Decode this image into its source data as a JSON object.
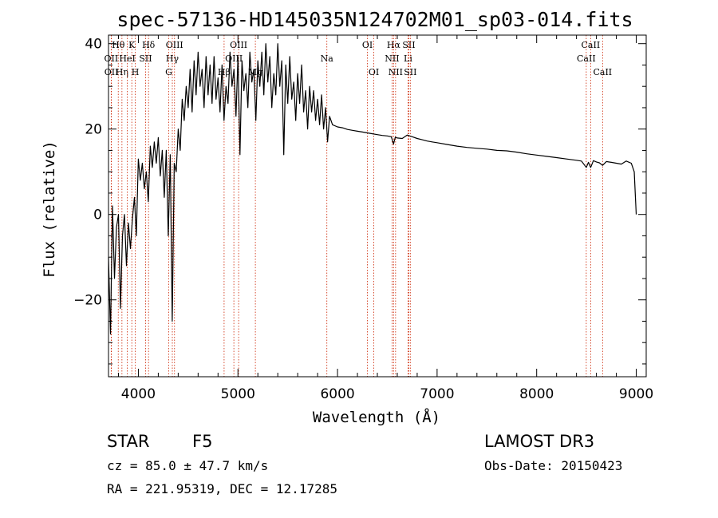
{
  "chart_data": {
    "type": "line",
    "title": "spec-57136-HD145035N124702M01_sp03-014.fits",
    "xlabel": "Wavelength (Å)",
    "ylabel": "Flux (relative)",
    "xlim": [
      3700,
      9100
    ],
    "ylim": [
      -38,
      42
    ],
    "xticks": [
      4000,
      5000,
      6000,
      7000,
      8000,
      9000
    ],
    "yticks": [
      -20,
      0,
      20,
      40
    ],
    "series": [
      {
        "name": "spectrum",
        "x": [
          3700,
          3720,
          3740,
          3760,
          3780,
          3800,
          3820,
          3840,
          3860,
          3880,
          3900,
          3920,
          3940,
          3960,
          3980,
          4000,
          4020,
          4040,
          4060,
          4080,
          4100,
          4120,
          4140,
          4160,
          4180,
          4200,
          4220,
          4240,
          4260,
          4280,
          4300,
          4320,
          4340,
          4360,
          4380,
          4400,
          4420,
          4440,
          4460,
          4480,
          4500,
          4520,
          4540,
          4560,
          4580,
          4600,
          4620,
          4640,
          4660,
          4680,
          4700,
          4720,
          4740,
          4760,
          4780,
          4800,
          4820,
          4840,
          4860,
          4880,
          4900,
          4920,
          4940,
          4960,
          4980,
          5000,
          5020,
          5040,
          5060,
          5080,
          5100,
          5120,
          5140,
          5160,
          5180,
          5200,
          5220,
          5240,
          5260,
          5280,
          5300,
          5320,
          5340,
          5360,
          5380,
          5400,
          5420,
          5440,
          5460,
          5480,
          5500,
          5520,
          5540,
          5560,
          5580,
          5600,
          5620,
          5640,
          5660,
          5680,
          5700,
          5720,
          5740,
          5760,
          5780,
          5800,
          5820,
          5840,
          5860,
          5880,
          5900,
          5920,
          5950,
          6000,
          6050,
          6100,
          6150,
          6200,
          6250,
          6300,
          6350,
          6400,
          6450,
          6500,
          6540,
          6563,
          6580,
          6600,
          6650,
          6700,
          6750,
          6800,
          6850,
          6900,
          6950,
          7000,
          7100,
          7200,
          7300,
          7400,
          7500,
          7600,
          7700,
          7800,
          7900,
          8000,
          8100,
          8200,
          8300,
          8400,
          8450,
          8498,
          8520,
          8542,
          8570,
          8600,
          8630,
          8662,
          8700,
          8750,
          8800,
          8850,
          8900,
          8950,
          8980,
          9000
        ],
        "y": [
          -10,
          -28,
          2,
          -15,
          -3,
          0,
          -22,
          -5,
          0,
          -12,
          -2,
          -8,
          -1,
          4,
          -5,
          13,
          8,
          12,
          6,
          10,
          3,
          16,
          11,
          17,
          12,
          18,
          9,
          15,
          4,
          15,
          -5,
          14,
          -25,
          12,
          10,
          20,
          15,
          27,
          22,
          30,
          25,
          34,
          24,
          36,
          28,
          38,
          30,
          34,
          25,
          37,
          28,
          35,
          26,
          37,
          27,
          32,
          24,
          35,
          22,
          30,
          26,
          38,
          30,
          34,
          23,
          37,
          14,
          36,
          29,
          33,
          25,
          38,
          31,
          34,
          22,
          36,
          30,
          38,
          28,
          40,
          31,
          37,
          25,
          33,
          28,
          40,
          30,
          36,
          14,
          35,
          26,
          37,
          27,
          31,
          22,
          33,
          26,
          35,
          24,
          29,
          20,
          30,
          24,
          29,
          22,
          27,
          21,
          28,
          20,
          25,
          17,
          23,
          21,
          20.5,
          20.3,
          19.9,
          19.7,
          19.5,
          19.3,
          19.1,
          18.9,
          18.7,
          18.5,
          18.4,
          18.2,
          16.5,
          18.1,
          17.9,
          17.8,
          18.6,
          18.2,
          17.8,
          17.5,
          17.2,
          17.0,
          16.8,
          16.4,
          16.0,
          15.7,
          15.5,
          15.3,
          15.0,
          14.9,
          14.6,
          14.2,
          13.9,
          13.6,
          13.3,
          13.0,
          12.7,
          12.5,
          11.0,
          12.2,
          11.0,
          12.6,
          12.3,
          12.1,
          11.5,
          12.4,
          12.2,
          12.0,
          11.8,
          12.5,
          12.0,
          10.0,
          0.0
        ]
      }
    ],
    "spectral_lines": [
      {
        "label": "Hθ",
        "wavelength": 3798,
        "row": 1
      },
      {
        "label": "OII",
        "wavelength": 3727,
        "row": 2
      },
      {
        "label": "OII",
        "wavelength": 3729,
        "row": 3
      },
      {
        "label": "Hη",
        "wavelength": 3835,
        "row": 3
      },
      {
        "label": "HeI",
        "wavelength": 3889,
        "row": 2
      },
      {
        "label": "K",
        "wavelength": 3934,
        "row": 1
      },
      {
        "label": "SII",
        "wavelength": 4072,
        "row": 2
      },
      {
        "label": "H",
        "wavelength": 3969,
        "row": 3
      },
      {
        "label": "Hδ",
        "wavelength": 4102,
        "row": 1
      },
      {
        "label": "OIII",
        "wavelength": 4363,
        "row": 1
      },
      {
        "label": "Hγ",
        "wavelength": 4341,
        "row": 2
      },
      {
        "label": "G",
        "wavelength": 4305,
        "row": 3
      },
      {
        "label": "OIII",
        "wavelength": 5007,
        "row": 1
      },
      {
        "label": "OIII",
        "wavelength": 4959,
        "row": 2
      },
      {
        "label": "Hβ",
        "wavelength": 4861,
        "row": 3
      },
      {
        "label": "Mg",
        "wavelength": 5175,
        "row": 3
      },
      {
        "label": "Na",
        "wavelength": 5893,
        "row": 2
      },
      {
        "label": "OI",
        "wavelength": 6300,
        "row": 1
      },
      {
        "label": "OI",
        "wavelength": 6364,
        "row": 3
      },
      {
        "label": "Hα",
        "wavelength": 6563,
        "row": 1
      },
      {
        "label": "SII",
        "wavelength": 6716,
        "row": 1
      },
      {
        "label": "NII",
        "wavelength": 6548,
        "row": 2
      },
      {
        "label": "Li",
        "wavelength": 6708,
        "row": 2
      },
      {
        "label": "NII",
        "wavelength": 6583,
        "row": 3
      },
      {
        "label": "SII",
        "wavelength": 6731,
        "row": 3
      },
      {
        "label": "CaII",
        "wavelength": 8542,
        "row": 1
      },
      {
        "label": "CaII",
        "wavelength": 8498,
        "row": 2
      },
      {
        "label": "CaII",
        "wavelength": 8662,
        "row": 3
      }
    ]
  },
  "info": {
    "object_type": "STAR",
    "subclass": "F5",
    "survey": "LAMOST DR3",
    "redshift": "cz = 85.0 ± 47.7 km/s",
    "obs_date": "Obs-Date: 20150423",
    "coords": "RA = 221.95319, DEC =  12.17285"
  },
  "colors": {
    "axis": "#000000",
    "spectrum": "#000000",
    "line_marker": "#cc2200"
  }
}
